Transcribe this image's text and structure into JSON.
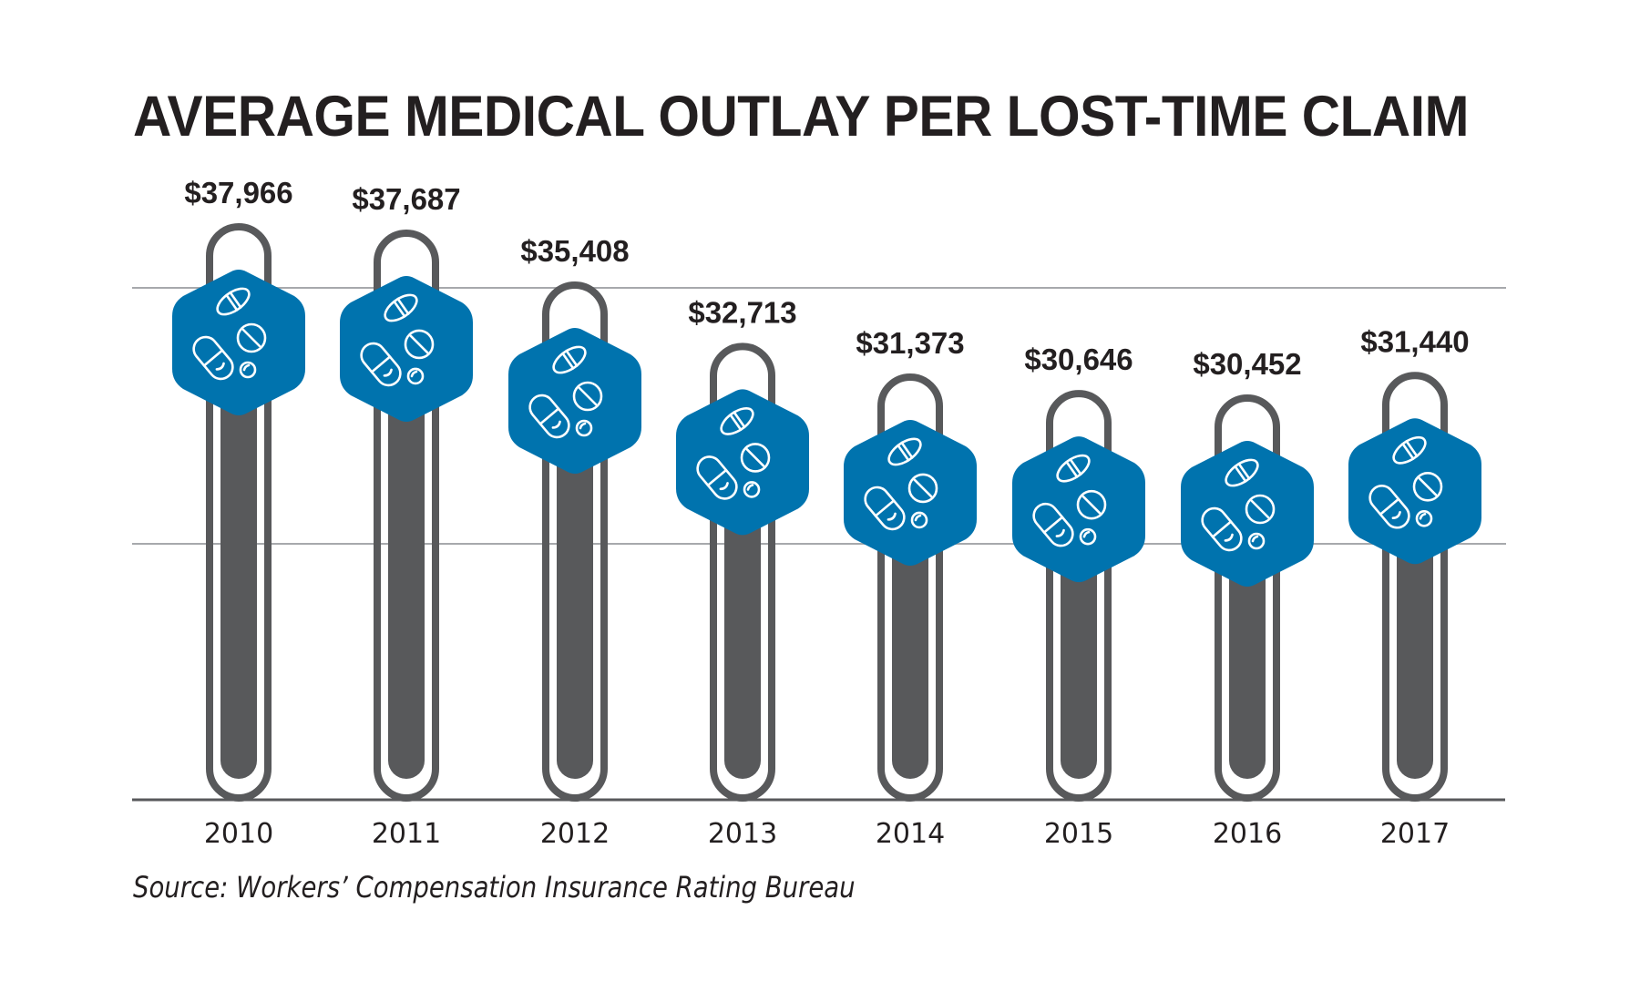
{
  "chart_data": {
    "type": "bar",
    "title": "AVERAGE MEDICAL OUTLAY PER LOST-TIME CLAIM",
    "xlabel": "",
    "ylabel": "",
    "categories": [
      "2010",
      "2011",
      "2012",
      "2013",
      "2014",
      "2015",
      "2016",
      "2017"
    ],
    "values": [
      37966,
      37687,
      35408,
      32713,
      31373,
      30646,
      30452,
      31440
    ],
    "data_labels": [
      "$37,966",
      "$37,687",
      "$35,408",
      "$32,713",
      "$31,373",
      "$30,646",
      "$30,452",
      "$31,440"
    ],
    "units": "USD",
    "grid": true,
    "legend": "none",
    "source": "Source: Workers’ Compensation Insurance Rating Bureau",
    "marker_icon": "pills-icon"
  },
  "colors": {
    "title": "#231f20",
    "hexagon": "#0073ae",
    "tube": "#58595b",
    "gridline": "#a7a9ac",
    "axis": "#58595b",
    "icon_stroke": "#ffffff"
  }
}
